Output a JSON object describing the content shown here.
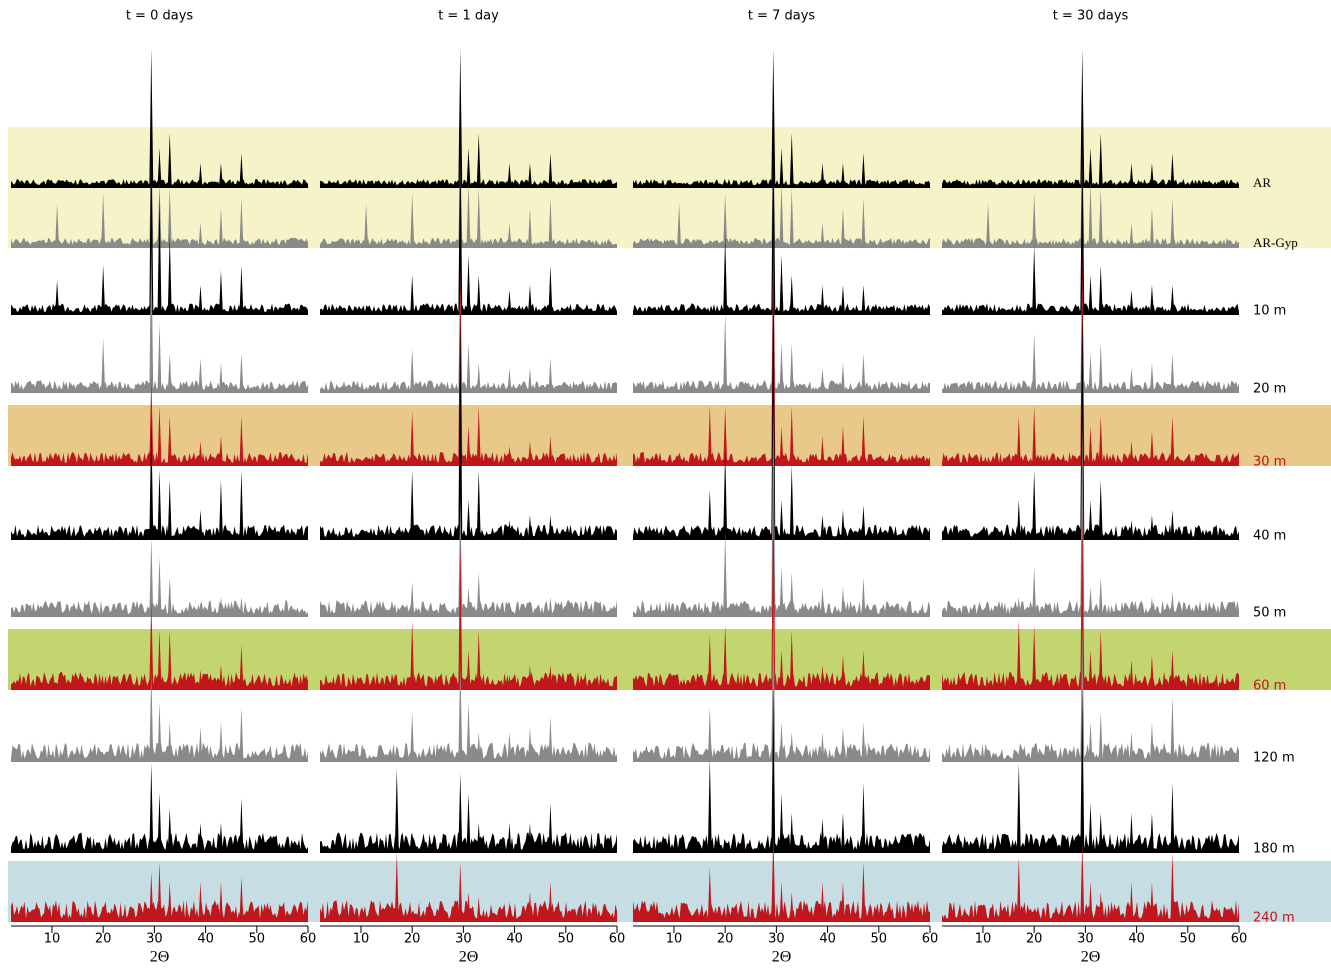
{
  "rows": [
    {
      "label": "AR",
      "color": "#000000",
      "label_color": "#000000",
      "band": "#f6f3c8"
    },
    {
      "label": "AR-Gyp",
      "color": "#8a8a8a",
      "label_color": "#000000",
      "band": "#f6f3c8"
    },
    {
      "label": "10 m",
      "color": "#000000",
      "label_color": "#000000",
      "band": null
    },
    {
      "label": "20 m",
      "color": "#8a8a8a",
      "label_color": "#000000",
      "band": null
    },
    {
      "label": "30 m",
      "color": "#c0161c",
      "label_color": "#c0161c",
      "band": "#e8c98a"
    },
    {
      "label": "40 m",
      "color": "#000000",
      "label_color": "#000000",
      "band": null
    },
    {
      "label": "50 m",
      "color": "#8a8a8a",
      "label_color": "#000000",
      "band": null
    },
    {
      "label": "60 m",
      "color": "#c0161c",
      "label_color": "#c0161c",
      "band": "#c3d56e"
    },
    {
      "label": "120 m",
      "color": "#8a8a8a",
      "label_color": "#000000",
      "band": null
    },
    {
      "label": "180 m",
      "color": "#000000",
      "label_color": "#000000",
      "band": null
    },
    {
      "label": "240 m",
      "color": "#c0161c",
      "label_color": "#c0161c",
      "band": "#c5dde3"
    }
  ],
  "chart_data": [
    {
      "type": "area",
      "title": "t = 0 days",
      "xlabel": "2Θ",
      "xlim": [
        2,
        60
      ],
      "xticks": [
        10,
        20,
        30,
        40,
        50,
        60
      ],
      "x": [
        11,
        17,
        20,
        29.4,
        31,
        33,
        39,
        43,
        47
      ],
      "series": [
        {
          "values": [
            0,
            0,
            0,
            140,
            40,
            55,
            25,
            25,
            35
          ]
        },
        {
          "values": [
            45,
            0,
            55,
            100,
            65,
            60,
            25,
            40,
            50
          ]
        },
        {
          "values": [
            35,
            0,
            50,
            200,
            120,
            80,
            30,
            45,
            50
          ]
        },
        {
          "values": [
            0,
            0,
            55,
            150,
            70,
            40,
            35,
            30,
            40
          ]
        },
        {
          "values": [
            0,
            0,
            0,
            90,
            60,
            50,
            25,
            30,
            50
          ]
        },
        {
          "values": [
            0,
            0,
            0,
            120,
            70,
            60,
            30,
            60,
            70
          ]
        },
        {
          "values": [
            0,
            0,
            0,
            80,
            60,
            40,
            15,
            20,
            20
          ]
        },
        {
          "values": [
            0,
            0,
            0,
            90,
            60,
            60,
            20,
            25,
            45
          ]
        },
        {
          "values": [
            0,
            0,
            0,
            90,
            60,
            40,
            35,
            40,
            55
          ]
        },
        {
          "values": [
            0,
            0,
            0,
            90,
            60,
            45,
            30,
            30,
            55
          ]
        },
        {
          "values": [
            0,
            0,
            0,
            50,
            60,
            40,
            40,
            40,
            45
          ]
        }
      ]
    },
    {
      "type": "area",
      "title": "t = 1 day",
      "xlabel": "2Θ",
      "xlim": [
        2,
        60
      ],
      "xticks": [
        10,
        20,
        30,
        40,
        50,
        60
      ],
      "x": [
        11,
        17,
        20,
        29.4,
        31,
        33,
        39,
        43,
        47
      ],
      "series": [
        {
          "values": [
            0,
            0,
            0,
            140,
            40,
            55,
            25,
            25,
            35
          ]
        },
        {
          "values": [
            45,
            0,
            55,
            100,
            65,
            60,
            25,
            40,
            50
          ]
        },
        {
          "values": [
            0,
            0,
            40,
            180,
            60,
            40,
            25,
            30,
            50
          ]
        },
        {
          "values": [
            0,
            0,
            45,
            120,
            50,
            30,
            25,
            25,
            35
          ]
        },
        {
          "values": [
            0,
            0,
            55,
            200,
            40,
            60,
            20,
            25,
            30
          ]
        },
        {
          "values": [
            0,
            0,
            70,
            230,
            40,
            70,
            20,
            25,
            25
          ]
        },
        {
          "values": [
            0,
            0,
            35,
            120,
            30,
            45,
            15,
            15,
            20
          ]
        },
        {
          "values": [
            0,
            0,
            70,
            150,
            40,
            60,
            15,
            25,
            25
          ]
        },
        {
          "values": [
            0,
            0,
            50,
            100,
            60,
            30,
            30,
            35,
            45
          ]
        },
        {
          "values": [
            0,
            85,
            20,
            80,
            60,
            30,
            30,
            30,
            50
          ]
        },
        {
          "values": [
            0,
            70,
            10,
            60,
            30,
            25,
            20,
            30,
            40
          ]
        }
      ]
    },
    {
      "type": "area",
      "title": "t = 7 days",
      "xlabel": "2Θ",
      "xlim": [
        2,
        60
      ],
      "xticks": [
        10,
        20,
        30,
        40,
        50,
        60
      ],
      "x": [
        11,
        17,
        20,
        29.4,
        31,
        33,
        39,
        43,
        47
      ],
      "series": [
        {
          "values": [
            0,
            0,
            0,
            140,
            40,
            55,
            25,
            25,
            35
          ]
        },
        {
          "values": [
            45,
            0,
            55,
            100,
            65,
            60,
            25,
            40,
            50
          ]
        },
        {
          "values": [
            0,
            0,
            80,
            200,
            60,
            40,
            30,
            30,
            30
          ]
        },
        {
          "values": [
            0,
            0,
            80,
            140,
            50,
            50,
            25,
            30,
            40
          ]
        },
        {
          "values": [
            0,
            60,
            60,
            240,
            40,
            60,
            30,
            40,
            50
          ]
        },
        {
          "values": [
            0,
            50,
            90,
            270,
            40,
            75,
            25,
            30,
            35
          ]
        },
        {
          "values": [
            0,
            0,
            85,
            220,
            50,
            45,
            30,
            30,
            40
          ]
        },
        {
          "values": [
            0,
            55,
            65,
            200,
            40,
            60,
            25,
            35,
            40
          ]
        },
        {
          "values": [
            0,
            55,
            0,
            160,
            40,
            30,
            30,
            35,
            40
          ]
        },
        {
          "values": [
            0,
            95,
            0,
            160,
            60,
            40,
            35,
            40,
            70
          ]
        },
        {
          "values": [
            0,
            55,
            0,
            90,
            40,
            30,
            40,
            40,
            60
          ]
        }
      ]
    },
    {
      "type": "area",
      "title": "t = 30 days",
      "xlabel": "2Θ",
      "xlim": [
        2,
        60
      ],
      "xticks": [
        10,
        20,
        30,
        40,
        50,
        60
      ],
      "x": [
        11,
        17,
        20,
        29.4,
        31,
        33,
        39,
        43,
        47
      ],
      "series": [
        {
          "values": [
            0,
            0,
            0,
            140,
            40,
            55,
            25,
            25,
            35
          ]
        },
        {
          "values": [
            45,
            0,
            55,
            100,
            65,
            60,
            25,
            40,
            50
          ]
        },
        {
          "values": [
            0,
            0,
            70,
            180,
            40,
            50,
            25,
            30,
            30
          ]
        },
        {
          "values": [
            0,
            0,
            60,
            120,
            40,
            50,
            25,
            30,
            40
          ]
        },
        {
          "values": [
            0,
            50,
            60,
            220,
            40,
            50,
            25,
            35,
            50
          ]
        },
        {
          "values": [
            0,
            40,
            70,
            240,
            40,
            60,
            20,
            25,
            30
          ]
        },
        {
          "values": [
            0,
            20,
            50,
            200,
            30,
            40,
            15,
            20,
            25
          ]
        },
        {
          "values": [
            0,
            70,
            65,
            180,
            40,
            60,
            30,
            35,
            40
          ]
        },
        {
          "values": [
            0,
            0,
            0,
            140,
            40,
            50,
            30,
            40,
            65
          ]
        },
        {
          "values": [
            0,
            90,
            0,
            160,
            50,
            40,
            40,
            40,
            70
          ]
        },
        {
          "values": [
            0,
            65,
            0,
            80,
            40,
            30,
            40,
            40,
            70
          ]
        }
      ]
    }
  ]
}
